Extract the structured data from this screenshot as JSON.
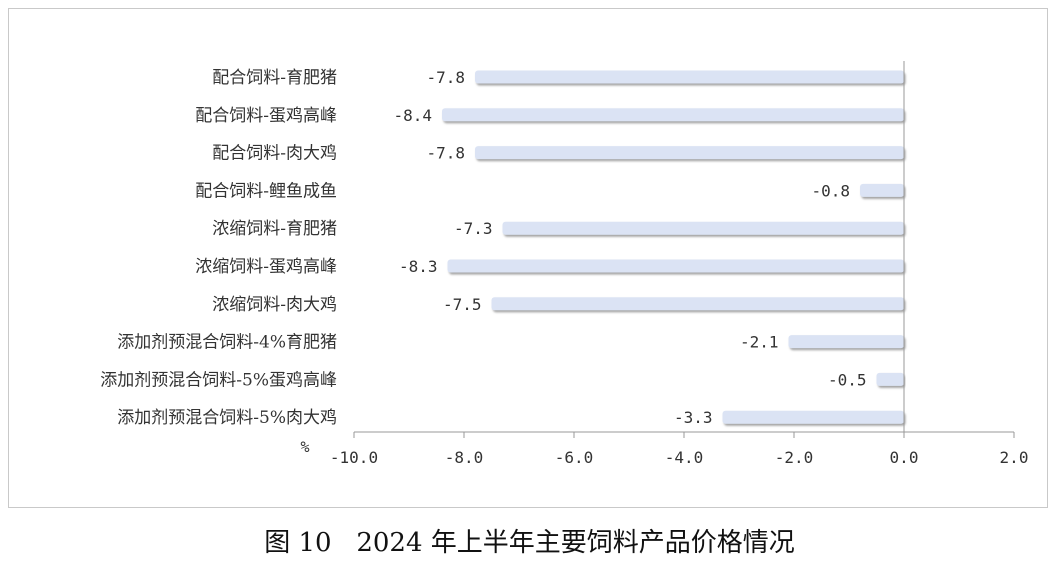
{
  "caption": "图 10   2024 年上半年主要饲料产品价格情况",
  "chart_data": {
    "type": "bar",
    "orientation": "horizontal",
    "categories": [
      "配合饲料-育肥猪",
      "配合饲料-蛋鸡高峰",
      "配合饲料-肉大鸡",
      "配合饲料-鲤鱼成鱼",
      "浓缩饲料-育肥猪",
      "浓缩饲料-蛋鸡高峰",
      "浓缩饲料-肉大鸡",
      "添加剂预混合饲料-4%育肥猪",
      "添加剂预混合饲料-5%蛋鸡高峰",
      "添加剂预混合饲料-5%肉大鸡"
    ],
    "values": [
      -7.8,
      -8.4,
      -7.8,
      -0.8,
      -7.3,
      -8.3,
      -7.5,
      -2.1,
      -0.5,
      -3.3
    ],
    "value_labels": [
      "-7.8",
      "-8.4",
      "-7.8",
      "-0.8",
      "-7.3",
      "-8.3",
      "-7.5",
      "-2.1",
      "-0.5",
      "-3.3"
    ],
    "xlim": [
      -10.0,
      2.0
    ],
    "ticks": [
      "-10.0",
      "-8.0",
      "-6.0",
      "-4.0",
      "-2.0",
      "0.0",
      "2.0"
    ],
    "tick_values": [
      -10,
      -8,
      -6,
      -4,
      -2,
      0,
      2
    ],
    "xunit": "%",
    "bar_color": "#dbe3f4",
    "axis_color": "#999999",
    "grid": false,
    "legend": false
  }
}
